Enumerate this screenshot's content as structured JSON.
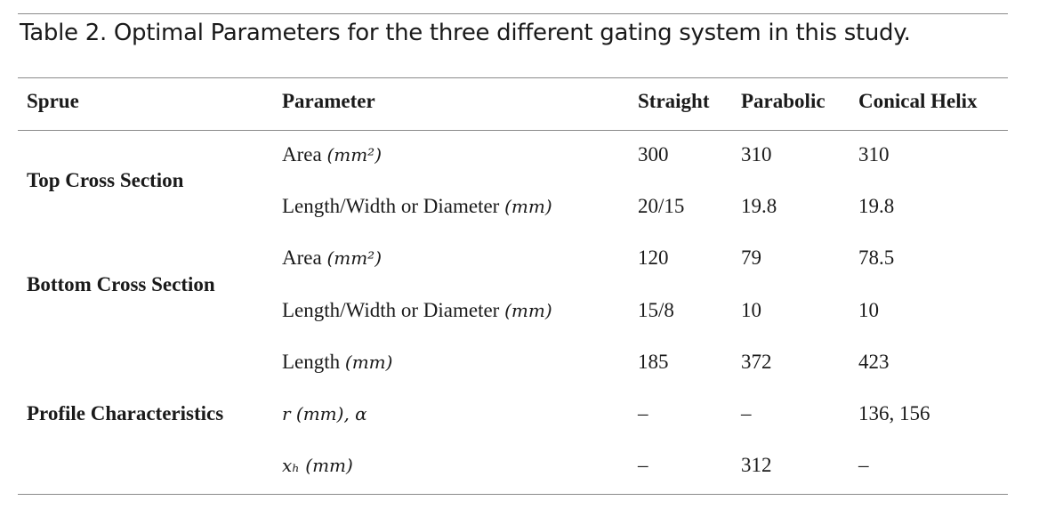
{
  "caption": "Table 2. Optimal Parameters for the three different gating system in this study.",
  "table": {
    "header": [
      "Sprue",
      "Parameter",
      "Straight",
      "Parabolic",
      "Conical Helix"
    ],
    "groups": [
      {
        "sprue": "Top Cross Section",
        "rows": [
          {
            "parameter": {
              "name": "Area",
              "math": "(mm²)"
            },
            "values": [
              "300",
              "310",
              "310"
            ]
          },
          {
            "parameter": {
              "name": "Length/Width or Diameter",
              "math": "(mm)"
            },
            "values": [
              "20/15",
              "19.8",
              "19.8"
            ]
          }
        ]
      },
      {
        "sprue": "Bottom Cross Section",
        "rows": [
          {
            "parameter": {
              "name": "Area",
              "math": "(mm²)"
            },
            "values": [
              "120",
              "79",
              "78.5"
            ]
          },
          {
            "parameter": {
              "name": "Length/Width or Diameter",
              "math": "(mm)"
            },
            "values": [
              "15/8",
              "10",
              "10"
            ]
          }
        ]
      },
      {
        "sprue": "Profile Characteristics",
        "rows": [
          {
            "parameter": {
              "name": "Length",
              "math": "(mm)"
            },
            "values": [
              "185",
              "372",
              "423"
            ]
          },
          {
            "parameter": {
              "math": "r (mm), α"
            },
            "values": [
              "–",
              "–",
              "136, 156"
            ]
          },
          {
            "parameter": {
              "math": "xₕ (mm)"
            },
            "values": [
              "–",
              "312",
              "–"
            ]
          }
        ]
      }
    ]
  }
}
